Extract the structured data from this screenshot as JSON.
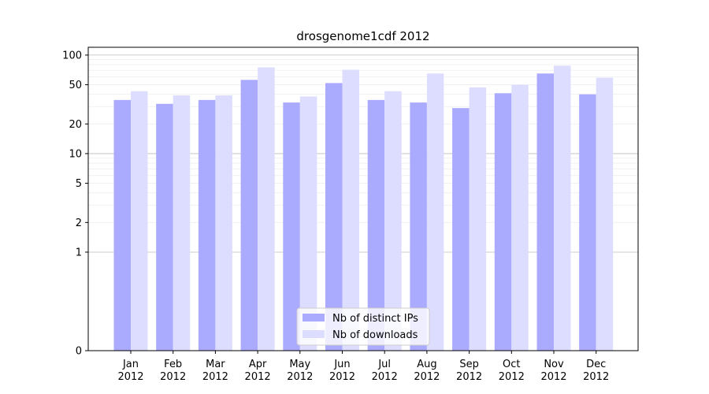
{
  "chart_data": {
    "type": "bar",
    "title": "drosgenome1cdf 2012",
    "xlabel": "",
    "ylabel": "",
    "yscale": "symlog",
    "ylim": [
      0,
      120
    ],
    "yticks": [
      0,
      1,
      2,
      5,
      10,
      20,
      50,
      100
    ],
    "grid": true,
    "legend_position": "bottom-center",
    "categories": [
      "Jan\n2012",
      "Feb\n2012",
      "Mar\n2012",
      "Apr\n2012",
      "May\n2012",
      "Jun\n2012",
      "Jul\n2012",
      "Aug\n2012",
      "Sep\n2012",
      "Oct\n2012",
      "Nov\n2012",
      "Dec\n2012"
    ],
    "series": [
      {
        "name": "Nb of distinct IPs",
        "color": "#aaaaff",
        "values": [
          35,
          32,
          35,
          56,
          33,
          52,
          35,
          33,
          29,
          41,
          65,
          40
        ]
      },
      {
        "name": "Nb of downloads",
        "color": "#ddddff",
        "values": [
          43,
          39,
          39,
          75,
          38,
          71,
          43,
          65,
          47,
          50,
          78,
          59
        ]
      }
    ]
  }
}
